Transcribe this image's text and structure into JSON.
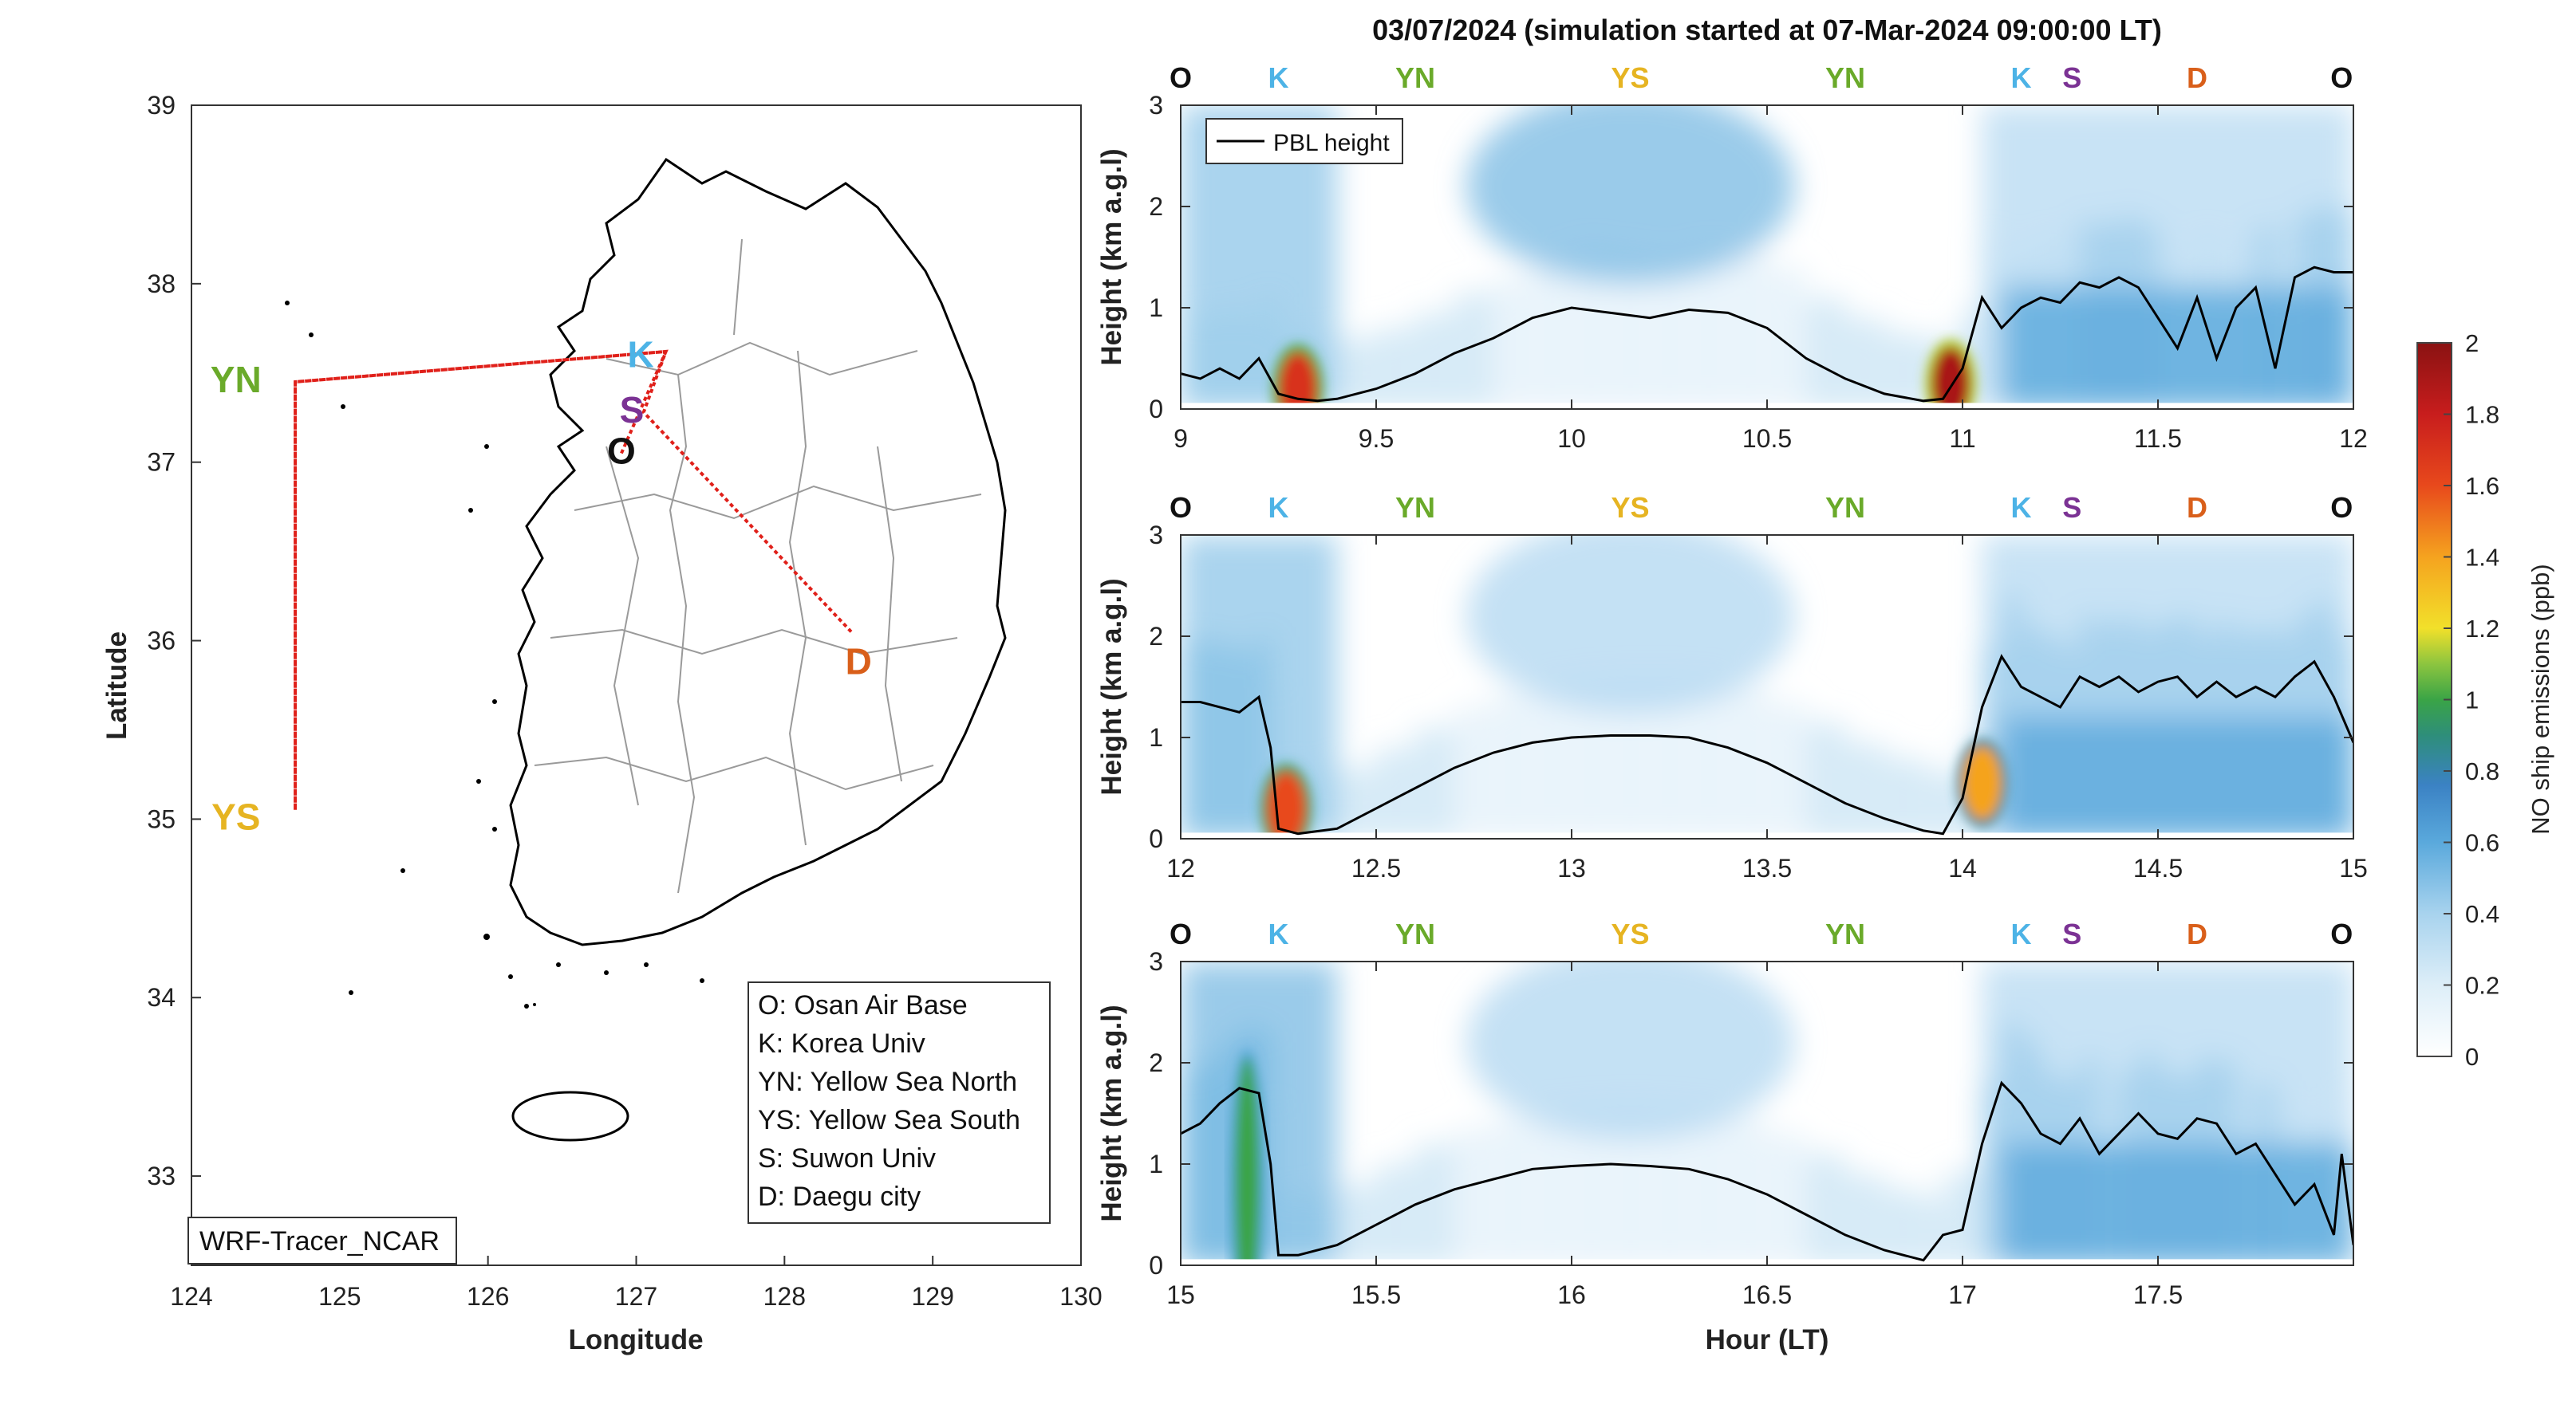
{
  "figure_title": "03/07/2024 (simulation started at 07-Mar-2024 09:00:00 LT)",
  "colors": {
    "O": "#111111",
    "K": "#4db3e6",
    "YN": "#6aaa2a",
    "YS": "#e6b422",
    "S": "#7b3294",
    "D": "#d95f1a",
    "track": "#e0201a"
  },
  "chart_data": [
    {
      "type": "map",
      "xlabel": "Longitude",
      "ylabel": "Latitude",
      "xlim": [
        124,
        130
      ],
      "ylim": [
        32.5,
        39
      ],
      "xticks": [
        "124",
        "125",
        "126",
        "127",
        "128",
        "129",
        "130"
      ],
      "yticks": [
        "33",
        "34",
        "35",
        "36",
        "37",
        "38",
        "39"
      ],
      "grid": false,
      "model_label": "WRF-Tracer_NCAR",
      "sites": [
        {
          "code": "O",
          "lon": 126.9,
          "lat": 37.05
        },
        {
          "code": "K",
          "lon": 127.03,
          "lat": 37.59
        },
        {
          "code": "S",
          "lon": 126.97,
          "lat": 37.28
        },
        {
          "code": "YN",
          "lon": 124.3,
          "lat": 37.45
        },
        {
          "code": "YS",
          "lon": 124.3,
          "lat": 35.0
        },
        {
          "code": "D",
          "lon": 128.5,
          "lat": 35.87
        }
      ],
      "flight_track": [
        [
          126.9,
          37.05
        ],
        [
          127.2,
          37.62
        ],
        [
          124.7,
          37.45
        ],
        [
          124.7,
          35.05
        ],
        [
          124.7,
          37.45
        ],
        [
          127.2,
          37.62
        ],
        [
          127.05,
          37.28
        ],
        [
          128.45,
          36.05
        ]
      ],
      "legend": [
        "O: Osan Air Base",
        "K: Korea Univ",
        "YN: Yellow Sea North",
        "YS: Yellow Sea South",
        "S: Suwon Univ",
        "D: Daegu city"
      ]
    },
    {
      "type": "heatmap",
      "ylabel": "Height (km a.g.l)",
      "xlim": [
        9,
        12
      ],
      "ylim": [
        0,
        3
      ],
      "xticks": [
        "9",
        "9.5",
        "10",
        "10.5",
        "11",
        "11.5",
        "12"
      ],
      "yticks": [
        "0",
        "1",
        "2",
        "3"
      ],
      "legend": "PBL height",
      "site_labels": [
        {
          "code": "O",
          "x": 9.0
        },
        {
          "code": "K",
          "x": 9.25
        },
        {
          "code": "YN",
          "x": 9.6
        },
        {
          "code": "YS",
          "x": 10.15
        },
        {
          "code": "YN",
          "x": 10.7
        },
        {
          "code": "K",
          "x": 11.15
        },
        {
          "code": "S",
          "x": 11.28
        },
        {
          "code": "D",
          "x": 11.6
        },
        {
          "code": "O",
          "x": 11.97
        }
      ],
      "pbl": [
        [
          9.0,
          0.35
        ],
        [
          9.05,
          0.3
        ],
        [
          9.1,
          0.4
        ],
        [
          9.15,
          0.3
        ],
        [
          9.2,
          0.5
        ],
        [
          9.25,
          0.15
        ],
        [
          9.3,
          0.1
        ],
        [
          9.35,
          0.08
        ],
        [
          9.4,
          0.1
        ],
        [
          9.5,
          0.2
        ],
        [
          9.6,
          0.35
        ],
        [
          9.7,
          0.55
        ],
        [
          9.8,
          0.7
        ],
        [
          9.9,
          0.9
        ],
        [
          10.0,
          1.0
        ],
        [
          10.1,
          0.95
        ],
        [
          10.2,
          0.9
        ],
        [
          10.3,
          0.98
        ],
        [
          10.4,
          0.95
        ],
        [
          10.5,
          0.8
        ],
        [
          10.6,
          0.5
        ],
        [
          10.7,
          0.3
        ],
        [
          10.8,
          0.15
        ],
        [
          10.9,
          0.08
        ],
        [
          10.95,
          0.1
        ],
        [
          11.0,
          0.4
        ],
        [
          11.05,
          1.1
        ],
        [
          11.1,
          0.8
        ],
        [
          11.15,
          1.0
        ],
        [
          11.2,
          1.1
        ],
        [
          11.25,
          1.05
        ],
        [
          11.3,
          1.25
        ],
        [
          11.35,
          1.2
        ],
        [
          11.4,
          1.3
        ],
        [
          11.45,
          1.2
        ],
        [
          11.5,
          0.9
        ],
        [
          11.55,
          0.6
        ],
        [
          11.6,
          1.1
        ],
        [
          11.65,
          0.5
        ],
        [
          11.7,
          1.0
        ],
        [
          11.75,
          1.2
        ],
        [
          11.8,
          0.4
        ],
        [
          11.85,
          1.3
        ],
        [
          11.9,
          1.4
        ],
        [
          11.95,
          1.35
        ],
        [
          12.0,
          1.35
        ]
      ],
      "hotspots": [
        {
          "x": 9.3,
          "y": 0.2,
          "value": 1.7
        },
        {
          "x": 10.97,
          "y": 0.25,
          "value": 1.9
        }
      ]
    },
    {
      "type": "heatmap",
      "ylabel": "Height (km a.g.l)",
      "xlim": [
        12,
        15
      ],
      "ylim": [
        0,
        3
      ],
      "xticks": [
        "12",
        "12.5",
        "13",
        "13.5",
        "14",
        "14.5",
        "15"
      ],
      "yticks": [
        "0",
        "1",
        "2",
        "3"
      ],
      "site_labels": [
        {
          "code": "O",
          "x": 12.0
        },
        {
          "code": "K",
          "x": 12.25
        },
        {
          "code": "YN",
          "x": 12.6
        },
        {
          "code": "YS",
          "x": 13.15
        },
        {
          "code": "YN",
          "x": 13.7
        },
        {
          "code": "K",
          "x": 14.15
        },
        {
          "code": "S",
          "x": 14.28
        },
        {
          "code": "D",
          "x": 14.6
        },
        {
          "code": "O",
          "x": 14.97
        }
      ],
      "pbl": [
        [
          12.0,
          1.35
        ],
        [
          12.05,
          1.35
        ],
        [
          12.1,
          1.3
        ],
        [
          12.15,
          1.25
        ],
        [
          12.2,
          1.4
        ],
        [
          12.23,
          0.9
        ],
        [
          12.25,
          0.1
        ],
        [
          12.3,
          0.05
        ],
        [
          12.4,
          0.1
        ],
        [
          12.5,
          0.3
        ],
        [
          12.6,
          0.5
        ],
        [
          12.7,
          0.7
        ],
        [
          12.8,
          0.85
        ],
        [
          12.9,
          0.95
        ],
        [
          13.0,
          1.0
        ],
        [
          13.1,
          1.02
        ],
        [
          13.2,
          1.02
        ],
        [
          13.3,
          1.0
        ],
        [
          13.4,
          0.9
        ],
        [
          13.5,
          0.75
        ],
        [
          13.6,
          0.55
        ],
        [
          13.7,
          0.35
        ],
        [
          13.8,
          0.2
        ],
        [
          13.9,
          0.08
        ],
        [
          13.95,
          0.05
        ],
        [
          14.0,
          0.4
        ],
        [
          14.05,
          1.3
        ],
        [
          14.1,
          1.8
        ],
        [
          14.15,
          1.5
        ],
        [
          14.2,
          1.4
        ],
        [
          14.25,
          1.3
        ],
        [
          14.3,
          1.6
        ],
        [
          14.35,
          1.5
        ],
        [
          14.4,
          1.6
        ],
        [
          14.45,
          1.45
        ],
        [
          14.5,
          1.55
        ],
        [
          14.55,
          1.6
        ],
        [
          14.6,
          1.4
        ],
        [
          14.65,
          1.55
        ],
        [
          14.7,
          1.4
        ],
        [
          14.75,
          1.5
        ],
        [
          14.8,
          1.4
        ],
        [
          14.85,
          1.6
        ],
        [
          14.9,
          1.75
        ],
        [
          14.95,
          1.4
        ],
        [
          15.0,
          0.95
        ]
      ],
      "hotspots": [
        {
          "x": 12.27,
          "y": 0.3,
          "value": 1.6
        },
        {
          "x": 14.05,
          "y": 0.55,
          "value": 1.4
        }
      ]
    },
    {
      "type": "heatmap",
      "xlabel": "Hour (LT)",
      "ylabel": "Height (km a.g.l)",
      "xlim": [
        15,
        18
      ],
      "ylim": [
        0,
        3
      ],
      "xticks": [
        "15",
        "15.5",
        "16",
        "16.5",
        "17",
        "17.5"
      ],
      "yticks": [
        "0",
        "1",
        "2",
        "3"
      ],
      "site_labels": [
        {
          "code": "O",
          "x": 15.0
        },
        {
          "code": "K",
          "x": 15.25
        },
        {
          "code": "YN",
          "x": 15.6
        },
        {
          "code": "YS",
          "x": 16.15
        },
        {
          "code": "YN",
          "x": 16.7
        },
        {
          "code": "K",
          "x": 17.15
        },
        {
          "code": "S",
          "x": 17.28
        },
        {
          "code": "D",
          "x": 17.6
        },
        {
          "code": "O",
          "x": 17.97
        }
      ],
      "pbl": [
        [
          15.0,
          1.3
        ],
        [
          15.05,
          1.4
        ],
        [
          15.1,
          1.6
        ],
        [
          15.15,
          1.75
        ],
        [
          15.2,
          1.7
        ],
        [
          15.23,
          1.0
        ],
        [
          15.25,
          0.1
        ],
        [
          15.3,
          0.1
        ],
        [
          15.4,
          0.2
        ],
        [
          15.5,
          0.4
        ],
        [
          15.6,
          0.6
        ],
        [
          15.7,
          0.75
        ],
        [
          15.8,
          0.85
        ],
        [
          15.9,
          0.95
        ],
        [
          16.0,
          0.98
        ],
        [
          16.1,
          1.0
        ],
        [
          16.2,
          0.98
        ],
        [
          16.3,
          0.95
        ],
        [
          16.4,
          0.85
        ],
        [
          16.5,
          0.7
        ],
        [
          16.6,
          0.5
        ],
        [
          16.7,
          0.3
        ],
        [
          16.8,
          0.15
        ],
        [
          16.9,
          0.05
        ],
        [
          16.95,
          0.3
        ],
        [
          17.0,
          0.35
        ],
        [
          17.05,
          1.2
        ],
        [
          17.1,
          1.8
        ],
        [
          17.15,
          1.6
        ],
        [
          17.2,
          1.3
        ],
        [
          17.25,
          1.2
        ],
        [
          17.3,
          1.45
        ],
        [
          17.35,
          1.1
        ],
        [
          17.4,
          1.3
        ],
        [
          17.45,
          1.5
        ],
        [
          17.5,
          1.3
        ],
        [
          17.55,
          1.25
        ],
        [
          17.6,
          1.45
        ],
        [
          17.65,
          1.4
        ],
        [
          17.7,
          1.1
        ],
        [
          17.75,
          1.2
        ],
        [
          17.8,
          0.9
        ],
        [
          17.85,
          0.6
        ],
        [
          17.9,
          0.8
        ],
        [
          17.95,
          0.3
        ],
        [
          17.97,
          1.1
        ],
        [
          18.0,
          0.2
        ]
      ],
      "hotspots": [
        {
          "x": 15.17,
          "y": 0.8,
          "value": 1.0
        }
      ]
    }
  ],
  "colorbar": {
    "label": "NO ship emissions (ppb)",
    "range": [
      0,
      2
    ],
    "ticks": [
      "0",
      "0.2",
      "0.4",
      "0.6",
      "0.8",
      "1",
      "1.2",
      "1.4",
      "1.6",
      "1.8",
      "2"
    ]
  }
}
